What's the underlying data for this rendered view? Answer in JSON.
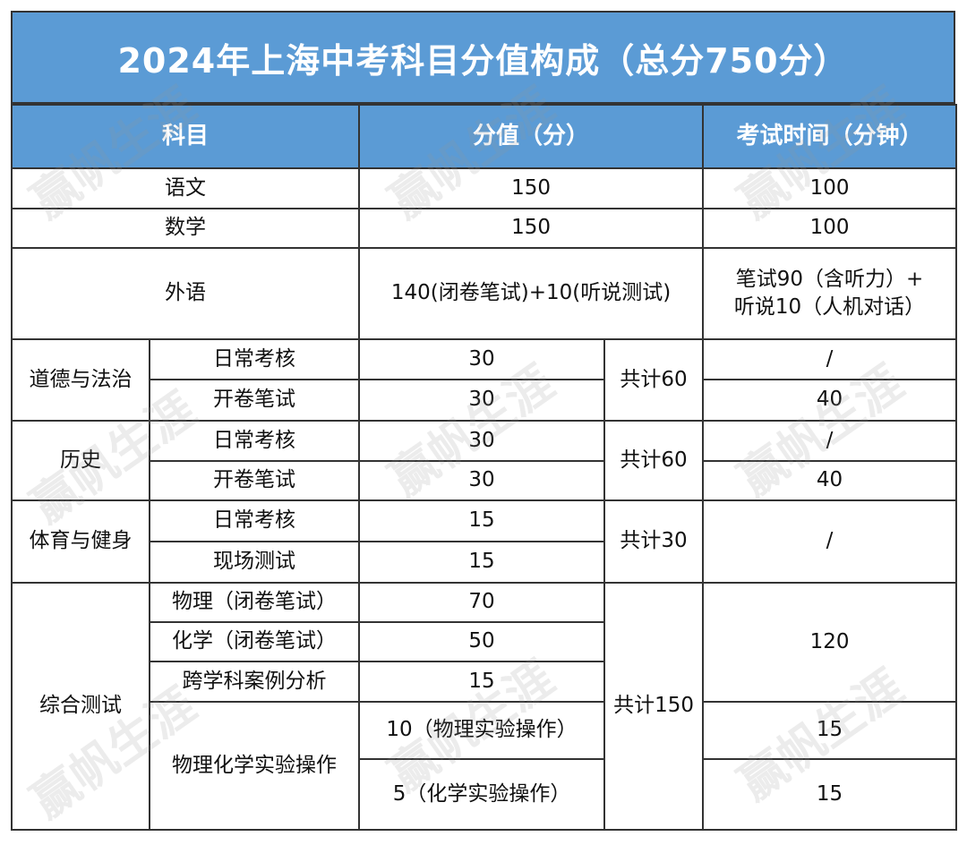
{
  "title": "2024年上海中考科目分值构成（总分750分）",
  "headers": [
    "科目",
    "分值（分）",
    "考试时间（分钟）"
  ],
  "rows": {
    "chinese": {
      "subject": "语文",
      "score": "150",
      "time": "100"
    },
    "math": {
      "subject": "数学",
      "score": "150",
      "time": "100"
    },
    "foreign": {
      "subject": "外语",
      "score": "140(闭卷笔试)+10(听说测试)",
      "time_line1": "笔试90（含听力）+",
      "time_line2": "听说10（人机对话）"
    },
    "morality": {
      "subject": "道德与法治",
      "items": [
        {
          "name": "日常考核",
          "score": "30",
          "time": "/"
        },
        {
          "name": "开卷笔试",
          "score": "30",
          "time": "40"
        }
      ],
      "total": "共计60"
    },
    "history": {
      "subject": "历史",
      "items": [
        {
          "name": "日常考核",
          "score": "30",
          "time": "/"
        },
        {
          "name": "开卷笔试",
          "score": "30",
          "time": "40"
        }
      ],
      "total": "共计60"
    },
    "pe": {
      "subject": "体育与健身",
      "items": [
        {
          "name": "日常考核",
          "score": "15"
        },
        {
          "name": "现场测试",
          "score": "15"
        }
      ],
      "total": "共计30",
      "time": "/"
    },
    "comprehensive": {
      "subject": "综合测试",
      "items": [
        {
          "name": "物理（闭卷笔试）",
          "score": "70"
        },
        {
          "name": "化学（闭卷笔试）",
          "score": "50"
        },
        {
          "name": "跨学科案例分析",
          "score": "15"
        },
        {
          "name": "物理化学实验操作",
          "score_a": "10（物理实验操作）",
          "score_b": "5（化学实验操作）"
        }
      ],
      "total": "共计150",
      "time_written": "120",
      "time_physics_lab": "15",
      "time_chem_lab": "15"
    }
  },
  "watermark": "赢帆生涯"
}
